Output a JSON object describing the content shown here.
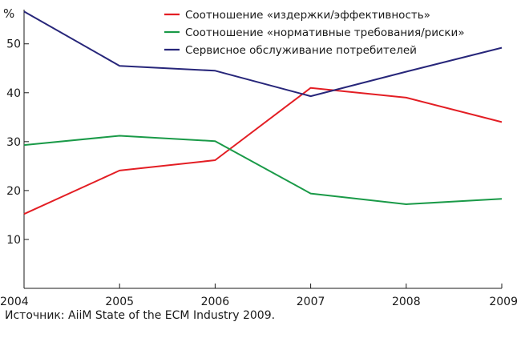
{
  "chart_data": {
    "type": "line",
    "x": [
      "2004",
      "2005",
      "2006",
      "2007",
      "2008",
      "2009"
    ],
    "y_unit": "%",
    "ylim": [
      0,
      57
    ],
    "y_ticks": [
      10,
      20,
      30,
      40,
      50
    ],
    "grid": false,
    "legend_position": "top-right",
    "series": [
      {
        "name": "Соотношение «издержки/эффективность»",
        "color": "#e31e24",
        "values": [
          15.2,
          24.1,
          26.2,
          41.0,
          39.0,
          34.0
        ]
      },
      {
        "name": "Соотношение «нормативные требования/риски»",
        "color": "#1a9a48",
        "values": [
          29.3,
          31.2,
          30.1,
          19.4,
          17.2,
          18.3
        ]
      },
      {
        "name": "Сервисное обслуживание потребителей",
        "color": "#27267a",
        "values": [
          56.6,
          45.5,
          44.5,
          39.3,
          44.3,
          49.2
        ]
      }
    ]
  },
  "source_text": "Источник: AiiM State of the ECM Industry 2009."
}
